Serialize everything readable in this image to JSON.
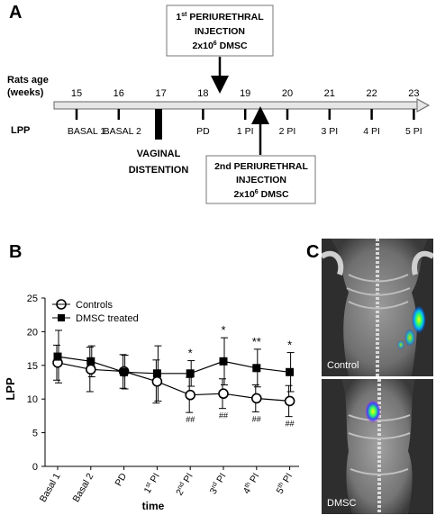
{
  "panel_a": {
    "letter": "A",
    "age_label_line1": "Rats age",
    "age_label_line2": "(weeks)",
    "weeks": [
      "15",
      "16",
      "17",
      "18",
      "19",
      "20",
      "21",
      "22",
      "23"
    ],
    "lpp_label": "LPP",
    "timeline_labels": [
      "BASAL 1",
      "BASAL 2",
      "PD",
      "1 PI",
      "2 PI",
      "3 PI",
      "4 PI",
      "5 PI"
    ],
    "vaginal_line1": "VAGINAL",
    "vaginal_line2": "DISTENTION",
    "injection1": {
      "line1_prefix": "1",
      "line1_sup": "st",
      "line1_suffix": " PERIURETHRAL",
      "line2": "INJECTION",
      "line3_prefix": "2x10",
      "line3_sup": "6",
      "line3_suffix": " DMSC"
    },
    "injection2": {
      "line1": "2nd  PERIURETHRAL",
      "line2": "INJECTION",
      "line3_prefix": "2x10",
      "line3_sup": "6",
      "line3_suffix": " DMSC"
    }
  },
  "panel_b": {
    "letter": "B",
    "chart_data": {
      "type": "line",
      "categories": [
        "Basal 1",
        "Basal 2",
        "PD",
        "1st PI",
        "2nd PI",
        "3rd PI",
        "4th PI",
        "5th PI"
      ],
      "xlabel": "time",
      "ylabel": "LPP",
      "ylim": [
        0,
        25
      ],
      "yticks": [
        0,
        5,
        10,
        15,
        20,
        25
      ],
      "legend_placement": "top-left",
      "series": [
        {
          "name": "Controls",
          "marker": "open-circle",
          "values": [
            15.4,
            14.4,
            14.1,
            12.6,
            10.6,
            10.8,
            10.1,
            9.7
          ],
          "errors": [
            2.6,
            3.3,
            2.5,
            3.2,
            2.6,
            2.2,
            2.0,
            2.3
          ]
        },
        {
          "name": "DMSC treated",
          "marker": "filled-square",
          "values": [
            16.3,
            15.6,
            14.0,
            13.8,
            13.8,
            15.6,
            14.6,
            14.0
          ],
          "errors": [
            3.9,
            2.3,
            2.5,
            4.1,
            1.9,
            3.5,
            2.8,
            2.9
          ]
        }
      ],
      "annotations_above": [
        "",
        "",
        "",
        "",
        "*",
        "*",
        "**",
        "*"
      ],
      "annotations_below": [
        "",
        "",
        "",
        "",
        "##",
        "##",
        "##",
        "##"
      ]
    },
    "tick_parts": [
      {
        "main": "Basal 1",
        "sup": ""
      },
      {
        "main": "Basal 2",
        "sup": ""
      },
      {
        "main": "PD",
        "sup": ""
      },
      {
        "main": "1",
        "sup": "st",
        "rest": " PI"
      },
      {
        "main": "2",
        "sup": "nd",
        "rest": " PI"
      },
      {
        "main": "3",
        "sup": "rd",
        "rest": " PI"
      },
      {
        "main": "4",
        "sup": "th",
        "rest": " PI"
      },
      {
        "main": "5",
        "sup": "th",
        "rest": " PI"
      }
    ]
  },
  "panel_c": {
    "letter": "C",
    "images": [
      {
        "label": "Control"
      },
      {
        "label": "DMSC"
      }
    ]
  }
}
